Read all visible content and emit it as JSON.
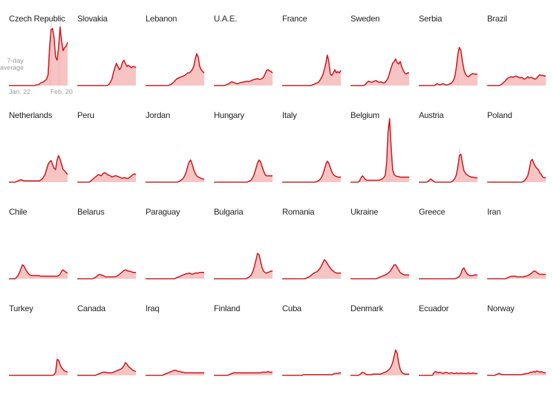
{
  "colors": {
    "line": "#c8191e",
    "area": "#f7c4c4",
    "spike": "#f4b6b6"
  },
  "legend": {
    "line1": "7-day",
    "line2": "average",
    "start_date": "Jan. 22",
    "end_date": "Feb. 20"
  },
  "chart_data": [
    {
      "type": "area",
      "title": "Czech Republic",
      "y": [
        0,
        0,
        0,
        0,
        0,
        0,
        0,
        0,
        0,
        0,
        0,
        0,
        0,
        0,
        0,
        0,
        0,
        0,
        0.01,
        0.01,
        0.02,
        0.04,
        0.05,
        0.06,
        0.08,
        0.1,
        0.17,
        0.6,
        0.88,
        0.9,
        0.75,
        0.45,
        0.4,
        0.6,
        0.92,
        0.7,
        0.55,
        0.6,
        0.62,
        0.68
      ]
    },
    {
      "type": "area",
      "title": "Slovakia",
      "y": [
        0,
        0,
        0,
        0,
        0,
        0,
        0,
        0,
        0,
        0,
        0,
        0,
        0,
        0,
        0,
        0,
        0,
        0,
        0,
        0,
        0,
        0.02,
        0.05,
        0.1,
        0.2,
        0.28,
        0.35,
        0.3,
        0.25,
        0.28,
        0.36,
        0.4,
        0.35,
        0.3,
        0.32,
        0.3,
        0.28,
        0.3,
        0.3,
        0.28
      ]
    },
    {
      "type": "area",
      "title": "Lebanon",
      "y": [
        0,
        0,
        0,
        0,
        0,
        0,
        0,
        0,
        0,
        0,
        0,
        0,
        0,
        0,
        0,
        0,
        0.01,
        0.02,
        0.04,
        0.06,
        0.09,
        0.11,
        0.12,
        0.13,
        0.14,
        0.15,
        0.16,
        0.18,
        0.2,
        0.2,
        0.22,
        0.25,
        0.3,
        0.42,
        0.5,
        0.45,
        0.3,
        0.25,
        0.22,
        0.2
      ]
    },
    {
      "type": "area",
      "title": "U.A.E.",
      "y": [
        0,
        0,
        0,
        0,
        0,
        0,
        0,
        0,
        0.01,
        0.02,
        0.03,
        0.05,
        0.06,
        0.05,
        0.04,
        0.03,
        0.03,
        0.04,
        0.05,
        0.05,
        0.06,
        0.06,
        0.07,
        0.06,
        0.07,
        0.08,
        0.09,
        0.1,
        0.1,
        0.11,
        0.1,
        0.1,
        0.11,
        0.13,
        0.18,
        0.24,
        0.25,
        0.23,
        0.22,
        0.2
      ]
    },
    {
      "type": "area",
      "title": "France",
      "y": [
        0,
        0,
        0,
        0,
        0,
        0,
        0,
        0,
        0,
        0,
        0,
        0,
        0,
        0,
        0,
        0,
        0,
        0,
        0,
        0,
        0.01,
        0.02,
        0.03,
        0.04,
        0.05,
        0.08,
        0.12,
        0.17,
        0.25,
        0.35,
        0.48,
        0.38,
        0.18,
        0.16,
        0.2,
        0.25,
        0.2,
        0.22,
        0.2,
        0.24
      ]
    },
    {
      "type": "area",
      "title": "Sweden",
      "y": [
        0,
        0,
        0,
        0,
        0,
        0,
        0,
        0,
        0,
        0,
        0.02,
        0.05,
        0.07,
        0.06,
        0.05,
        0.06,
        0.07,
        0.08,
        0.06,
        0.05,
        0.06,
        0.05,
        0.04,
        0.05,
        0.08,
        0.12,
        0.2,
        0.28,
        0.35,
        0.38,
        0.42,
        0.36,
        0.34,
        0.38,
        0.3,
        0.24,
        0.2,
        0.18,
        0.2,
        0.2
      ]
    },
    {
      "type": "area",
      "title": "Serbia",
      "y": [
        0,
        0,
        0,
        0,
        0,
        0,
        0,
        0,
        0,
        0,
        0,
        0.01,
        0.03,
        0.02,
        0.01,
        0.02,
        0.03,
        0.02,
        0.01,
        0.01,
        0.02,
        0.03,
        0.05,
        0.08,
        0.15,
        0.3,
        0.5,
        0.6,
        0.55,
        0.38,
        0.25,
        0.18,
        0.15,
        0.14,
        0.16,
        0.18,
        0.19,
        0.18,
        0.18,
        0.18
      ]
    },
    {
      "type": "area",
      "title": "Brazil",
      "y": [
        0,
        0,
        0,
        0,
        0,
        0,
        0,
        0,
        0,
        0.01,
        0.03,
        0.05,
        0.07,
        0.1,
        0.12,
        0.13,
        0.14,
        0.13,
        0.14,
        0.15,
        0.14,
        0.13,
        0.12,
        0.13,
        0.11,
        0.1,
        0.12,
        0.14,
        0.12,
        0.13,
        0.12,
        0.11,
        0.1,
        0.12,
        0.15,
        0.17,
        0.16,
        0.16,
        0.15,
        0.15
      ]
    },
    {
      "type": "area",
      "title": "Netherlands",
      "y": [
        0,
        0,
        0,
        0,
        0,
        0.01,
        0.02,
        0.03,
        0.04,
        0.03,
        0.02,
        0.02,
        0.02,
        0.02,
        0.02,
        0.02,
        0.02,
        0.02,
        0.02,
        0.02,
        0.02,
        0.03,
        0.05,
        0.08,
        0.12,
        0.2,
        0.28,
        0.32,
        0.34,
        0.28,
        0.22,
        0.2,
        0.35,
        0.42,
        0.36,
        0.28,
        0.2,
        0.18,
        0.15,
        0.12
      ]
    },
    {
      "type": "area",
      "title": "Peru",
      "y": [
        0,
        0,
        0,
        0,
        0,
        0,
        0,
        0,
        0,
        0.02,
        0.04,
        0.06,
        0.08,
        0.1,
        0.12,
        0.11,
        0.1,
        0.13,
        0.15,
        0.14,
        0.12,
        0.11,
        0.1,
        0.08,
        0.09,
        0.1,
        0.1,
        0.09,
        0.08,
        0.07,
        0.06,
        0.07,
        0.07,
        0.06,
        0.06,
        0.08,
        0.1,
        0.12,
        0.13,
        0.12
      ]
    },
    {
      "type": "area",
      "title": "Jordan",
      "y": [
        0,
        0,
        0,
        0,
        0,
        0,
        0,
        0,
        0,
        0,
        0,
        0,
        0,
        0,
        0,
        0,
        0,
        0,
        0,
        0,
        0,
        0,
        0.01,
        0.02,
        0.04,
        0.06,
        0.1,
        0.16,
        0.25,
        0.32,
        0.35,
        0.28,
        0.2,
        0.14,
        0.1,
        0.08,
        0.07,
        0.06,
        0.05,
        0.05
      ]
    },
    {
      "type": "area",
      "title": "Hungary",
      "y": [
        0,
        0,
        0,
        0,
        0,
        0,
        0,
        0,
        0,
        0,
        0,
        0,
        0,
        0,
        0,
        0,
        0,
        0,
        0,
        0,
        0,
        0,
        0,
        0.01,
        0.02,
        0.04,
        0.08,
        0.14,
        0.22,
        0.3,
        0.35,
        0.32,
        0.25,
        0.18,
        0.12,
        0.1,
        0.1,
        0.1,
        0.1,
        0.1
      ]
    },
    {
      "type": "area",
      "title": "Italy",
      "y": [
        0,
        0,
        0,
        0,
        0,
        0,
        0,
        0,
        0,
        0,
        0,
        0,
        0,
        0,
        0,
        0,
        0,
        0,
        0,
        0,
        0,
        0,
        0,
        0.01,
        0.02,
        0.04,
        0.07,
        0.12,
        0.2,
        0.28,
        0.33,
        0.3,
        0.23,
        0.16,
        0.12,
        0.1,
        0.09,
        0.08,
        0.08,
        0.08
      ]
    },
    {
      "type": "area",
      "title": "Belgium",
      "y": [
        0,
        0,
        0,
        0,
        0,
        0,
        0.02,
        0.07,
        0.1,
        0.07,
        0.04,
        0.03,
        0.03,
        0.03,
        0.03,
        0.03,
        0.03,
        0.03,
        0.03,
        0.03,
        0.04,
        0.05,
        0.07,
        0.1,
        0.3,
        0.8,
        1,
        0.55,
        0.2,
        0.12,
        0.1,
        0.09,
        0.09,
        0.08,
        0.08,
        0.08,
        0.08,
        0.08,
        0.08,
        0.08
      ]
    },
    {
      "type": "area",
      "title": "Austria",
      "y": [
        0,
        0,
        0,
        0,
        0,
        0,
        0.01,
        0.03,
        0.05,
        0.03,
        0.01,
        0,
        0,
        0,
        0,
        0,
        0,
        0,
        0,
        0,
        0,
        0,
        0.01,
        0.03,
        0.06,
        0.12,
        0.25,
        0.42,
        0.44,
        0.3,
        0.18,
        0.14,
        0.12,
        0.1,
        0.09,
        0.08,
        0.08,
        0.07,
        0.07,
        0.07
      ]
    },
    {
      "type": "area",
      "title": "Poland",
      "y": [
        0,
        0,
        0,
        0,
        0,
        0,
        0,
        0,
        0,
        0,
        0,
        0,
        0,
        0,
        0,
        0,
        0,
        0,
        0,
        0,
        0,
        0,
        0,
        0,
        0.01,
        0.03,
        0.06,
        0.1,
        0.2,
        0.33,
        0.36,
        0.3,
        0.25,
        0.22,
        0.2,
        0.15,
        0.12,
        0.08,
        0.07,
        0.07
      ]
    },
    {
      "type": "area",
      "title": "Chile",
      "y": [
        0,
        0,
        0,
        0,
        0,
        0.02,
        0.05,
        0.1,
        0.16,
        0.22,
        0.2,
        0.15,
        0.11,
        0.08,
        0.06,
        0.05,
        0.05,
        0.05,
        0.05,
        0.05,
        0.05,
        0.04,
        0.04,
        0.04,
        0.04,
        0.04,
        0.04,
        0.04,
        0.04,
        0.04,
        0.04,
        0.04,
        0.04,
        0.05,
        0.07,
        0.12,
        0.14,
        0.12,
        0.1,
        0.09
      ]
    },
    {
      "type": "area",
      "title": "Belarus",
      "y": [
        0,
        0,
        0,
        0,
        0,
        0,
        0,
        0,
        0,
        0,
        0,
        0.01,
        0.02,
        0.04,
        0.06,
        0.07,
        0.06,
        0.05,
        0.04,
        0.03,
        0.03,
        0.03,
        0.03,
        0.03,
        0.03,
        0.03,
        0.04,
        0.05,
        0.07,
        0.09,
        0.11,
        0.13,
        0.14,
        0.13,
        0.12,
        0.12,
        0.11,
        0.1,
        0.1,
        0.1
      ]
    },
    {
      "type": "area",
      "title": "Paraguay",
      "y": [
        0,
        0,
        0,
        0,
        0,
        0,
        0,
        0,
        0,
        0,
        0,
        0,
        0,
        0,
        0,
        0,
        0,
        0,
        0,
        0,
        0.01,
        0.02,
        0.03,
        0.04,
        0.05,
        0.06,
        0.07,
        0.08,
        0.08,
        0.09,
        0.08,
        0.07,
        0.08,
        0.09,
        0.09,
        0.09,
        0.1,
        0.1,
        0.1,
        0.1
      ]
    },
    {
      "type": "area",
      "title": "Bulgaria",
      "y": [
        0,
        0,
        0,
        0,
        0,
        0,
        0,
        0,
        0,
        0,
        0,
        0,
        0,
        0,
        0,
        0,
        0,
        0,
        0,
        0,
        0,
        0,
        0.01,
        0.02,
        0.04,
        0.07,
        0.12,
        0.2,
        0.3,
        0.4,
        0.38,
        0.28,
        0.18,
        0.12,
        0.1,
        0.09,
        0.1,
        0.11,
        0.12,
        0.12
      ]
    },
    {
      "type": "area",
      "title": "Romania",
      "y": [
        0,
        0,
        0,
        0,
        0,
        0,
        0,
        0,
        0,
        0,
        0,
        0,
        0,
        0,
        0,
        0,
        0.01,
        0.02,
        0.03,
        0.05,
        0.07,
        0.09,
        0.1,
        0.11,
        0.13,
        0.16,
        0.2,
        0.25,
        0.3,
        0.28,
        0.24,
        0.2,
        0.17,
        0.14,
        0.12,
        0.1,
        0.09,
        0.09,
        0.09,
        0.09
      ]
    },
    {
      "type": "area",
      "title": "Ukraine",
      "y": [
        0,
        0,
        0,
        0,
        0,
        0,
        0,
        0,
        0,
        0,
        0,
        0,
        0,
        0,
        0,
        0,
        0,
        0,
        0.01,
        0.02,
        0.03,
        0.04,
        0.05,
        0.06,
        0.07,
        0.09,
        0.11,
        0.14,
        0.18,
        0.22,
        0.22,
        0.18,
        0.14,
        0.1,
        0.08,
        0.07,
        0.06,
        0.06,
        0.06,
        0.06
      ]
    },
    {
      "type": "area",
      "title": "Greece",
      "y": [
        0,
        0,
        0,
        0,
        0,
        0,
        0,
        0,
        0,
        0,
        0,
        0,
        0,
        0,
        0,
        0,
        0,
        0,
        0,
        0,
        0,
        0,
        0,
        0,
        0,
        0.01,
        0.02,
        0.04,
        0.08,
        0.15,
        0.17,
        0.12,
        0.08,
        0.06,
        0.05,
        0.05,
        0.05,
        0.06,
        0.06,
        0.06
      ]
    },
    {
      "type": "area",
      "title": "Iran",
      "y": [
        0,
        0,
        0,
        0,
        0,
        0,
        0,
        0,
        0,
        0,
        0,
        0,
        0,
        0.01,
        0.02,
        0.03,
        0.04,
        0.04,
        0.04,
        0.04,
        0.03,
        0.03,
        0.03,
        0.03,
        0.03,
        0.04,
        0.04,
        0.05,
        0.06,
        0.08,
        0.1,
        0.12,
        0.12,
        0.1,
        0.08,
        0.07,
        0.07,
        0.07,
        0.07,
        0.07
      ]
    },
    {
      "type": "area",
      "title": "Turkey",
      "y": [
        0,
        0,
        0,
        0,
        0,
        0,
        0,
        0,
        0,
        0,
        0,
        0,
        0,
        0,
        0,
        0,
        0,
        0,
        0,
        0,
        0,
        0,
        0,
        0,
        0,
        0,
        0,
        0,
        0,
        0,
        0.01,
        0.05,
        0.25,
        0.24,
        0.17,
        0.12,
        0.09,
        0.07,
        0.06,
        0.05
      ]
    },
    {
      "type": "area",
      "title": "Canada",
      "y": [
        0,
        0,
        0,
        0,
        0,
        0,
        0,
        0,
        0,
        0,
        0,
        0,
        0,
        0.01,
        0.02,
        0.03,
        0.04,
        0.05,
        0.05,
        0.05,
        0.04,
        0.04,
        0.04,
        0.04,
        0.05,
        0.06,
        0.07,
        0.08,
        0.09,
        0.1,
        0.12,
        0.15,
        0.2,
        0.18,
        0.14,
        0.12,
        0.1,
        0.08,
        0.07,
        0.06
      ]
    },
    {
      "type": "area",
      "title": "Iraq",
      "y": [
        0,
        0,
        0,
        0,
        0,
        0,
        0,
        0,
        0,
        0,
        0,
        0,
        0.01,
        0.02,
        0.03,
        0.04,
        0.05,
        0.06,
        0.07,
        0.08,
        0.08,
        0.07,
        0.06,
        0.06,
        0.05,
        0.05,
        0.04,
        0.04,
        0.04,
        0.04,
        0.04,
        0.04,
        0.04,
        0.04,
        0.04,
        0.04,
        0.04,
        0.04,
        0.04,
        0.04
      ]
    },
    {
      "type": "area",
      "title": "Finland",
      "y": [
        0,
        0,
        0,
        0,
        0,
        0,
        0,
        0,
        0,
        0,
        0.01,
        0.02,
        0.03,
        0.04,
        0.04,
        0.04,
        0.04,
        0.04,
        0.04,
        0.04,
        0.04,
        0.04,
        0.04,
        0.04,
        0.04,
        0.04,
        0.04,
        0.04,
        0.04,
        0.04,
        0.04,
        0.04,
        0.05,
        0.05,
        0.05,
        0.05,
        0.06,
        0.05,
        0.05,
        0.05
      ]
    },
    {
      "type": "area",
      "title": "Cuba",
      "y": [
        0,
        0,
        0,
        0,
        0,
        0,
        0,
        0,
        0,
        0,
        0,
        0,
        0,
        0,
        0.01,
        0.01,
        0.01,
        0.01,
        0.01,
        0.01,
        0.01,
        0.01,
        0.01,
        0.01,
        0.01,
        0.01,
        0.01,
        0.01,
        0.01,
        0.01,
        0.01,
        0.01,
        0.01,
        0.01,
        0.02,
        0.03,
        0.03,
        0.03,
        0.04,
        0.04
      ]
    },
    {
      "type": "area",
      "title": "Denmark",
      "y": [
        0,
        0,
        0,
        0,
        0,
        0,
        0.01,
        0.03,
        0.05,
        0.04,
        0.02,
        0.01,
        0.01,
        0.01,
        0.01,
        0.02,
        0.02,
        0.02,
        0.02,
        0.02,
        0.02,
        0.03,
        0.04,
        0.05,
        0.06,
        0.08,
        0.1,
        0.14,
        0.2,
        0.3,
        0.4,
        0.35,
        0.2,
        0.1,
        0.05,
        0.03,
        0.02,
        0.02,
        0.02,
        0.02
      ]
    },
    {
      "type": "area",
      "title": "Ecuador",
      "y": [
        0,
        0,
        0,
        0,
        0,
        0,
        0,
        0,
        0,
        0,
        0.04,
        0.06,
        0.05,
        0.04,
        0.05,
        0.04,
        0.03,
        0.04,
        0.05,
        0.04,
        0.03,
        0.04,
        0.04,
        0.03,
        0.03,
        0.04,
        0.03,
        0.03,
        0.04,
        0.03,
        0.03,
        0.03,
        0.03,
        0.04,
        0.03,
        0.03,
        0.04,
        0.03,
        0.03,
        0.03
      ]
    },
    {
      "type": "area",
      "title": "Norway",
      "y": [
        0,
        0,
        0,
        0,
        0,
        0,
        0.01,
        0.02,
        0.03,
        0.02,
        0.01,
        0.01,
        0.01,
        0.01,
        0.01,
        0.01,
        0.01,
        0.01,
        0.01,
        0.01,
        0.01,
        0.01,
        0.01,
        0.01,
        0.02,
        0.02,
        0.03,
        0.03,
        0.04,
        0.05,
        0.05,
        0.06,
        0.05,
        0.07,
        0.06,
        0.05,
        0.06,
        0.05,
        0.04,
        0.04
      ]
    }
  ]
}
